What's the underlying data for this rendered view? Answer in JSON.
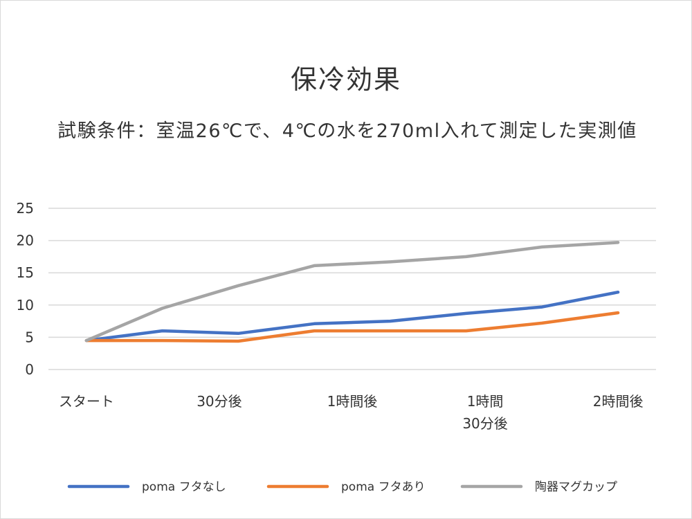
{
  "chart_data": {
    "type": "line",
    "title": "保冷効果",
    "subtitle": "試験条件：室温26℃で、4℃の水を270ml入れて測定した実測値",
    "xlabel": "",
    "ylabel": "",
    "ylim": [
      0,
      25
    ],
    "yticks": [
      0,
      5,
      10,
      15,
      20,
      25
    ],
    "x_tick_labels": [
      [
        "スタート"
      ],
      [
        "30分後"
      ],
      [
        "1時間後"
      ],
      [
        "1時間",
        "30分後"
      ],
      [
        "2時間後"
      ]
    ],
    "grid": true,
    "legend_position": "bottom",
    "series": [
      {
        "name": "poma フタなし",
        "color": "#4472C4",
        "values": [
          4.5,
          6.0,
          5.6,
          7.1,
          7.5,
          8.7,
          9.7,
          12.0
        ]
      },
      {
        "name": "poma フタあり",
        "color": "#ED7D31",
        "values": [
          4.5,
          4.5,
          4.4,
          6.0,
          6.0,
          6.0,
          7.2,
          8.8
        ]
      },
      {
        "name": "陶器マグカップ",
        "color": "#A5A5A5",
        "values": [
          4.5,
          9.5,
          13.0,
          16.1,
          16.7,
          17.5,
          19.0,
          19.7
        ]
      }
    ]
  }
}
